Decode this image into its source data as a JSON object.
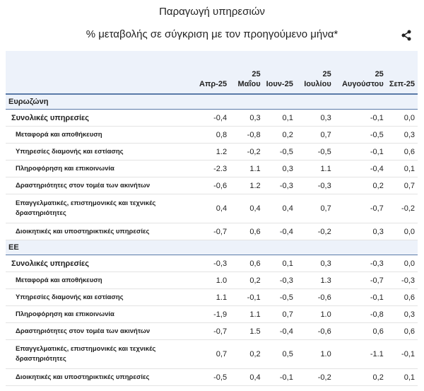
{
  "title": "Παραγωγή υπηρεσιών",
  "subtitle": "% μεταβολής σε σύγκριση με τον προηγούμενο μήνα*",
  "table": {
    "columns": [
      "Απρ-25",
      "25 Μαΐου",
      "Ιουν-25",
      "25 Ιουλίου",
      "25 Αυγούστου",
      "Σεπ-25"
    ],
    "sections": [
      {
        "name": "Ευρωζώνη",
        "rows": [
          {
            "label": "Συνολικές υπηρεσίες",
            "total": true,
            "values": [
              "-0,4",
              "0,3",
              "0,1",
              "0,3",
              "-0,1",
              "0,0"
            ]
          },
          {
            "label": "Μεταφορά και αποθήκευση",
            "values": [
              "0,8",
              "-0,8",
              "0,2",
              "0,7",
              "-0,5",
              "0,3"
            ]
          },
          {
            "label": "Υπηρεσίες διαμονής και εστίασης",
            "values": [
              "1.2",
              "-0,2",
              "-0,5",
              "-0,5",
              "-0,1",
              "0,6"
            ]
          },
          {
            "label": "Πληροφόρηση και επικοινωνία",
            "values": [
              "-2.3",
              "1.1",
              "0,3",
              "1.1",
              "-0,4",
              "0,1"
            ]
          },
          {
            "label": "Δραστηριότητες στον τομέα των ακινήτων",
            "values": [
              "-0,6",
              "1.2",
              "-0,3",
              "-0,3",
              "0,2",
              "0,7"
            ]
          },
          {
            "label": "Επαγγελματικές, επιστημονικές και τεχνικές δραστηριότητες",
            "values": [
              "0,4",
              "0,4",
              "0,4",
              "0,7",
              "-0,7",
              "-0,2"
            ]
          },
          {
            "label": "Διοικητικές και υποστηρικτικές υπηρεσίες",
            "values": [
              "-0,7",
              "0,6",
              "-0,4",
              "-0,2",
              "0,3",
              "0,0"
            ]
          }
        ]
      },
      {
        "name": "ΕΕ",
        "rows": [
          {
            "label": "Συνολικές υπηρεσίες",
            "total": true,
            "values": [
              "-0,3",
              "0,6",
              "0,1",
              "0,3",
              "-0,3",
              "0,0"
            ]
          },
          {
            "label": "Μεταφορά και αποθήκευση",
            "values": [
              "1.0",
              "0,2",
              "-0,3",
              "1.3",
              "-0,7",
              "-0,3"
            ]
          },
          {
            "label": "Υπηρεσίες διαμονής και εστίασης",
            "values": [
              "1.1",
              "-0,1",
              "-0,5",
              "-0,6",
              "-0,1",
              "0,6"
            ]
          },
          {
            "label": "Πληροφόρηση και επικοινωνία",
            "values": [
              "-1,9",
              "1.1",
              "0,7",
              "1.0",
              "-0,8",
              "0,3"
            ]
          },
          {
            "label": "Δραστηριότητες στον τομέα των ακινήτων",
            "values": [
              "-0,7",
              "1.5",
              "-0,4",
              "-0,6",
              "0,6",
              "0,6"
            ]
          },
          {
            "label": "Επαγγελματικές, επιστημονικές και τεχνικές δραστηριότητες",
            "values": [
              "0,7",
              "0,2",
              "0,5",
              "1.0",
              "-1.1",
              "-0,1"
            ]
          },
          {
            "label": "Διοικητικές και υποστηρικτικές υπηρεσίες",
            "values": [
              "-0,5",
              "0,4",
              "-0,1",
              "-0,2",
              "0,2",
              "0,1"
            ]
          }
        ]
      }
    ]
  }
}
